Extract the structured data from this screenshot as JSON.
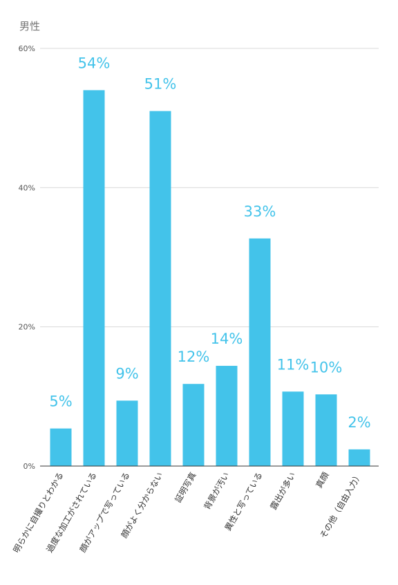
{
  "chart_data": {
    "type": "bar",
    "title": "男性",
    "categories": [
      "明らかに自撮りとわかる",
      "過度な加工がされている",
      "顔がアップで写っている",
      "顔がよく分からない",
      "証明写真",
      "背景が汚い",
      "異性と写っている",
      "露出が多い",
      "真顔",
      "その他（自由入力）"
    ],
    "values": [
      5.4,
      54,
      9.4,
      51,
      11.8,
      14.4,
      32.7,
      10.7,
      10.3,
      2.4
    ],
    "data_labels": [
      "5%",
      "54%",
      "9%",
      "51%",
      "12%",
      "14%",
      "33%",
      "11%",
      "10%",
      "2%"
    ],
    "y_ticks": [
      {
        "value": 0,
        "label": "0%"
      },
      {
        "value": 20,
        "label": "20%"
      },
      {
        "value": 40,
        "label": "40%"
      },
      {
        "value": 60,
        "label": "60%"
      }
    ],
    "ylim": [
      0,
      60
    ],
    "xlabel": "",
    "ylabel": "",
    "grid": true,
    "legend": "none",
    "colors": {
      "bar": "#43c3ea",
      "label": "#43c3ea",
      "grid": "#d9d9d9",
      "axis": "#333333"
    }
  }
}
